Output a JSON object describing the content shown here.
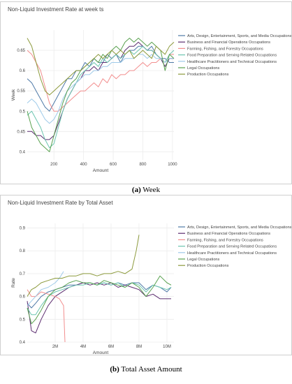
{
  "colors": [
    "#4e79a7",
    "#5b2c6f",
    "#f28e8e",
    "#6cc5b0",
    "#9ecae9",
    "#59a14f",
    "#8c9a3c"
  ],
  "legend": [
    "Arts, Design, Entertainment, Sports, and Media Occupations",
    "Business and Financial Operations Occupations",
    "Farming, Fishing, and Forestry Occupations",
    "Food Preparation and Serving Related Occupations",
    "Healthcare Practitioners and Technical Occupations",
    "Legal Occupations",
    "Production Occupations"
  ],
  "captions": {
    "a_label": "(a)",
    "a_text": "Week",
    "b_label": "(b)",
    "b_text": "Total Asset Amount"
  },
  "chart_data": [
    {
      "type": "line",
      "title": "Non-Liquid Investment Rate at week ts",
      "xlabel": "Amount",
      "ylabel": "Week",
      "xlim": [
        20,
        1010
      ],
      "ylim": [
        0.38,
        0.7
      ],
      "x_ticks": [
        200,
        400,
        600,
        800,
        1000
      ],
      "x_tick_labels": [
        "200",
        "400",
        "600",
        "800",
        "1000"
      ],
      "y_ticks": [
        0.4,
        0.45,
        0.5,
        0.55,
        0.6,
        0.65
      ],
      "y_tick_labels": [
        "0.4",
        "0.45",
        "0.5",
        "0.55",
        "0.6",
        "0.65"
      ],
      "grid": true,
      "legend_position": "right",
      "x": [
        20,
        50,
        80,
        110,
        140,
        170,
        200,
        230,
        260,
        290,
        320,
        350,
        380,
        410,
        440,
        470,
        500,
        530,
        560,
        590,
        620,
        650,
        680,
        710,
        740,
        770,
        800,
        830,
        860,
        890,
        920,
        950,
        980,
        1010
      ],
      "series": [
        {
          "name": "Arts, Design, Entertainment, Sports, and Media Occupations",
          "values": [
            0.58,
            0.57,
            0.55,
            0.53,
            0.51,
            0.5,
            0.52,
            0.54,
            0.56,
            0.58,
            0.58,
            0.6,
            0.6,
            0.62,
            0.61,
            0.63,
            0.62,
            0.62,
            0.64,
            0.63,
            0.64,
            0.62,
            0.64,
            0.65,
            0.65,
            0.66,
            0.66,
            0.65,
            0.66,
            0.64,
            0.63,
            0.63,
            0.62,
            0.62
          ]
        },
        {
          "name": "Business and Financial Operations Occupations",
          "values": [
            0.45,
            0.45,
            0.44,
            0.44,
            0.43,
            0.43,
            0.44,
            0.47,
            0.5,
            0.53,
            0.55,
            0.57,
            0.58,
            0.6,
            0.6,
            0.61,
            0.6,
            0.62,
            0.62,
            0.63,
            0.64,
            0.63,
            0.65,
            0.66,
            0.66,
            0.67,
            0.66,
            0.65,
            0.65,
            0.64,
            0.63,
            0.61,
            0.63,
            0.63
          ]
        },
        {
          "name": "Farming, Fishing, and Forestry Occupations",
          "values": [
            0.65,
            0.64,
            0.62,
            0.6,
            0.56,
            0.52,
            0.5,
            0.5,
            0.51,
            0.52,
            0.53,
            0.54,
            0.55,
            0.55,
            0.56,
            0.57,
            0.56,
            0.58,
            0.57,
            0.59,
            0.58,
            0.59,
            0.59,
            0.6,
            0.6,
            0.61,
            0.62,
            0.61,
            0.62,
            0.62,
            0.63,
            0.62,
            0.64,
            0.64
          ]
        },
        {
          "name": "Food Preparation and Serving Related Occupations",
          "values": [
            0.49,
            0.5,
            0.48,
            0.46,
            0.43,
            0.41,
            0.42,
            0.46,
            0.5,
            0.53,
            0.55,
            0.57,
            0.59,
            0.6,
            0.61,
            0.62,
            0.61,
            0.63,
            0.62,
            0.63,
            0.64,
            0.63,
            0.64,
            0.65,
            0.64,
            0.65,
            0.66,
            0.65,
            0.65,
            0.64,
            0.63,
            0.62,
            0.64,
            0.65
          ]
        },
        {
          "name": "Healthcare Practitioners and Technical Occupations",
          "values": [
            0.52,
            0.53,
            0.52,
            0.5,
            0.48,
            0.47,
            0.48,
            0.5,
            0.53,
            0.55,
            0.56,
            0.57,
            0.58,
            0.59,
            0.59,
            0.6,
            0.6,
            0.61,
            0.61,
            0.62,
            0.62,
            0.62,
            0.63,
            0.63,
            0.63,
            0.64,
            0.64,
            0.63,
            0.64,
            0.63,
            0.63,
            0.62,
            0.63,
            0.63
          ]
        },
        {
          "name": "Legal Occupations",
          "values": [
            0.5,
            0.46,
            0.44,
            0.42,
            0.41,
            0.4,
            0.44,
            0.48,
            0.52,
            0.55,
            0.57,
            0.58,
            0.6,
            0.61,
            0.62,
            0.63,
            0.62,
            0.64,
            0.63,
            0.65,
            0.66,
            0.65,
            0.67,
            0.68,
            0.67,
            0.68,
            0.67,
            0.66,
            0.67,
            0.66,
            0.65,
            0.6,
            0.64,
            0.63
          ]
        },
        {
          "name": "Production Occupations",
          "values": [
            0.68,
            0.66,
            0.62,
            0.58,
            0.55,
            0.54,
            0.55,
            0.56,
            0.57,
            0.58,
            0.59,
            0.6,
            0.6,
            0.61,
            0.62,
            0.63,
            0.64,
            0.63,
            0.64,
            0.65,
            0.64,
            0.65,
            0.64,
            0.65,
            0.63,
            0.64,
            0.65,
            0.64,
            0.63,
            0.66,
            0.65,
            0.64,
            0.66,
            0.67
          ]
        }
      ]
    },
    {
      "type": "line",
      "title": "Non-Liquid Investment Rate by Total Asset",
      "xlabel": "Amount",
      "ylabel": "Rate",
      "xlim": [
        0,
        10500000
      ],
      "ylim": [
        0.4,
        0.92
      ],
      "x_ticks": [
        2000000,
        4000000,
        6000000,
        8000000,
        10000000
      ],
      "x_tick_labels": [
        "2M",
        "4M",
        "6M",
        "8M",
        "10M"
      ],
      "y_ticks": [
        0.4,
        0.5,
        0.6,
        0.7,
        0.8,
        0.9
      ],
      "y_tick_labels": [
        "0.4",
        "0.5",
        "0.6",
        "0.7",
        "0.8",
        "0.9"
      ],
      "grid": true,
      "legend_position": "right",
      "series": [
        {
          "name": "Arts, Design, Entertainment, Sports, and Media Occupations",
          "x": [
            0,
            300000,
            600000,
            1000000,
            1500000,
            2000000,
            2500000,
            3000000,
            3500000,
            4000000,
            4500000,
            5000000,
            5500000,
            6000000,
            6500000,
            7000000,
            7500000,
            8000000,
            8500000,
            9000000,
            9500000,
            10000000,
            10300000
          ],
          "values": [
            0.57,
            0.55,
            0.57,
            0.6,
            0.62,
            0.63,
            0.64,
            0.65,
            0.65,
            0.66,
            0.66,
            0.65,
            0.66,
            0.65,
            0.66,
            0.65,
            0.66,
            0.66,
            0.63,
            0.65,
            0.64,
            0.62,
            0.64
          ]
        },
        {
          "name": "Business and Financial Operations Occupations",
          "x": [
            0,
            300000,
            600000,
            1000000,
            1500000,
            2000000,
            2500000,
            3000000,
            3500000,
            4000000,
            4500000,
            5000000,
            5500000,
            6000000,
            6500000,
            7000000,
            7500000,
            8000000,
            8500000,
            9000000,
            9500000,
            10000000,
            10300000
          ],
          "values": [
            0.58,
            0.45,
            0.44,
            0.5,
            0.56,
            0.6,
            0.62,
            0.64,
            0.65,
            0.66,
            0.65,
            0.66,
            0.65,
            0.66,
            0.64,
            0.65,
            0.64,
            0.63,
            0.6,
            0.61,
            0.59,
            0.59,
            0.59
          ]
        },
        {
          "name": "Farming, Fishing, and Forestry Occupations",
          "x": [
            0,
            300000,
            600000,
            1000000,
            1500000,
            2000000,
            2300000,
            2600000,
            2700000
          ],
          "values": [
            0.63,
            0.6,
            0.6,
            0.62,
            0.61,
            0.6,
            0.59,
            0.56,
            0.4
          ]
        },
        {
          "name": "Food Preparation and Serving Related Occupations",
          "x": [
            0,
            300000,
            600000,
            1000000,
            1500000,
            2000000,
            2500000,
            3000000,
            3500000,
            4000000,
            4500000,
            5000000,
            5500000,
            6000000,
            6500000,
            7000000,
            7500000,
            8000000,
            8500000,
            9000000,
            9500000,
            10000000,
            10300000
          ],
          "values": [
            0.55,
            0.52,
            0.52,
            0.56,
            0.6,
            0.62,
            0.63,
            0.64,
            0.65,
            0.65,
            0.66,
            0.65,
            0.66,
            0.65,
            0.66,
            0.64,
            0.66,
            0.65,
            0.62,
            0.65,
            0.64,
            0.63,
            0.64
          ]
        },
        {
          "name": "Healthcare Practitioners and Technical Occupations",
          "x": [
            0,
            300000,
            600000,
            1000000,
            1500000,
            2000000,
            2300000,
            2600000
          ],
          "values": [
            0.56,
            0.58,
            0.6,
            0.63,
            0.64,
            0.66,
            0.68,
            0.71
          ]
        },
        {
          "name": "Legal Occupations",
          "x": [
            0,
            300000,
            600000,
            1000000,
            1500000,
            2000000,
            2500000,
            3000000,
            3500000,
            4000000,
            4500000,
            5000000,
            5500000,
            6000000,
            6500000,
            7000000,
            7500000,
            8000000,
            8500000,
            9000000,
            9500000,
            10000000,
            10300000
          ],
          "values": [
            0.55,
            0.48,
            0.5,
            0.54,
            0.6,
            0.63,
            0.64,
            0.66,
            0.67,
            0.66,
            0.66,
            0.65,
            0.67,
            0.66,
            0.65,
            0.64,
            0.66,
            0.64,
            0.6,
            0.64,
            0.69,
            0.66,
            0.65
          ]
        },
        {
          "name": "Production Occupations",
          "x": [
            0,
            300000,
            600000,
            1000000,
            1500000,
            2000000,
            2500000,
            3000000,
            3500000,
            4000000,
            4500000,
            5000000,
            5500000,
            6000000,
            6500000,
            7000000,
            7500000,
            7800000,
            8000000
          ],
          "values": [
            0.6,
            0.63,
            0.64,
            0.66,
            0.67,
            0.68,
            0.68,
            0.69,
            0.69,
            0.7,
            0.7,
            0.69,
            0.7,
            0.7,
            0.71,
            0.7,
            0.72,
            0.8,
            0.87
          ]
        }
      ]
    }
  ]
}
